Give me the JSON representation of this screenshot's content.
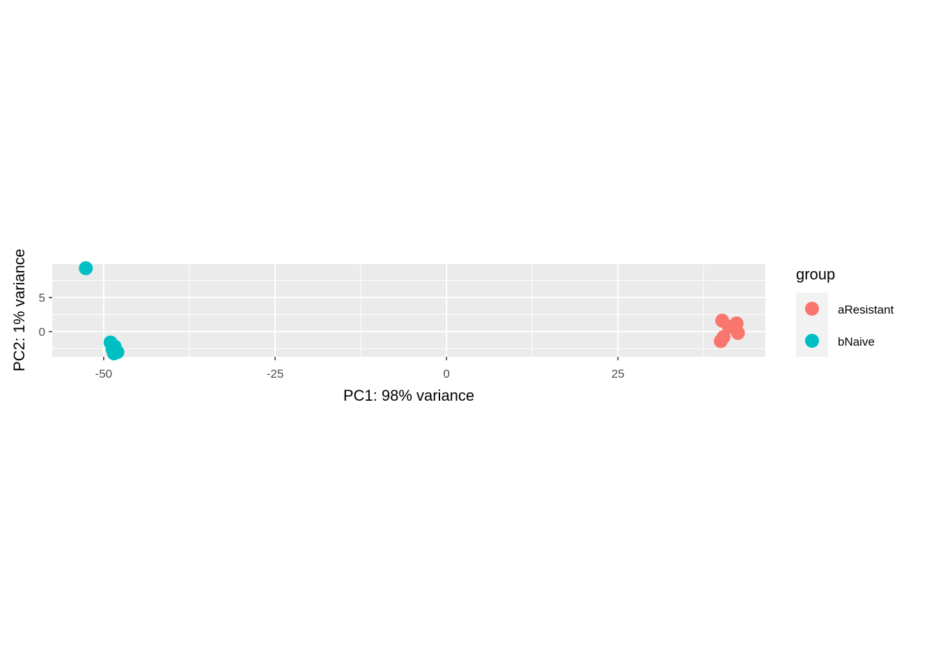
{
  "chart_data": {
    "type": "scatter",
    "xlabel": "PC1: 98% variance",
    "ylabel": "PC2: 1% variance",
    "xlim": [
      -57.5,
      46.5
    ],
    "ylim": [
      -3.7,
      9.9
    ],
    "x_ticks": [
      -50,
      -25,
      0,
      25
    ],
    "y_ticks": [
      0,
      5
    ],
    "grid": true,
    "legend": {
      "title": "group",
      "placement": "right"
    },
    "series": [
      {
        "name": "aResistant",
        "color": "#F8766D",
        "points": [
          {
            "x": 40.2,
            "y": 1.6
          },
          {
            "x": 42.3,
            "y": 1.2
          },
          {
            "x": 41.2,
            "y": 0.7
          },
          {
            "x": 42.5,
            "y": -0.2
          },
          {
            "x": 40.4,
            "y": -0.8
          },
          {
            "x": 40.0,
            "y": -1.4
          }
        ]
      },
      {
        "name": "bNaive",
        "color": "#00BFC4",
        "points": [
          {
            "x": -52.6,
            "y": 9.3
          },
          {
            "x": -49.0,
            "y": -1.6
          },
          {
            "x": -48.4,
            "y": -2.2
          },
          {
            "x": -48.7,
            "y": -2.6
          },
          {
            "x": -48.0,
            "y": -3.0
          },
          {
            "x": -48.5,
            "y": -3.2
          }
        ]
      }
    ]
  }
}
